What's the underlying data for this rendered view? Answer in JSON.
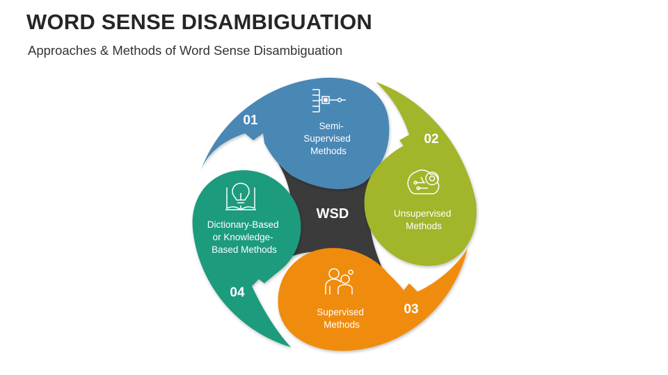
{
  "header": {
    "title": "WORD SENSE DISAMBIGUATION",
    "subtitle": "Approaches & Methods of Word Sense Disambiguation"
  },
  "center": {
    "label": "WSD",
    "color": "#3a3a3a"
  },
  "segments": [
    {
      "number": "01",
      "label_lines": [
        "Semi-",
        "Supervised",
        "Methods"
      ],
      "color": "#4a87b5",
      "icon": "flowchart-chip-icon"
    },
    {
      "number": "02",
      "label_lines": [
        "Unsupervised",
        "Methods"
      ],
      "color": "#a3b52a",
      "icon": "brain-gear-icon"
    },
    {
      "number": "03",
      "label_lines": [
        "Supervised",
        "Methods"
      ],
      "color": "#f08c0a",
      "icon": "teacher-student-icon"
    },
    {
      "number": "04",
      "label_lines": [
        "Dictionary-Based",
        "or Knowledge-",
        "Based Methods"
      ],
      "color": "#1f9b7d",
      "icon": "book-lightbulb-icon"
    }
  ]
}
